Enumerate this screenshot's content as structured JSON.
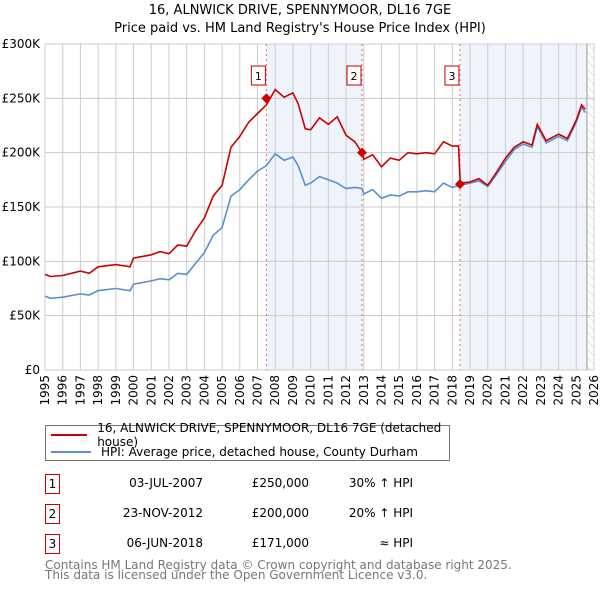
{
  "title": [
    "16, ALNWICK DRIVE, SPENNYMOOR, DL16 7GE",
    "Price paid vs. HM Land Registry's House Price Index (HPI)"
  ],
  "chart_data": {
    "type": "line",
    "xlim": [
      1995,
      2026
    ],
    "ylim": [
      0,
      300000
    ],
    "y_ticks": [
      {
        "v": 0,
        "label": "£0"
      },
      {
        "v": 50000,
        "label": "£50K"
      },
      {
        "v": 100000,
        "label": "£100K"
      },
      {
        "v": 150000,
        "label": "£150K"
      },
      {
        "v": 200000,
        "label": "£200K"
      },
      {
        "v": 250000,
        "label": "£250K"
      },
      {
        "v": 300000,
        "label": "£300K"
      }
    ],
    "x_ticks": [
      "1995",
      "1996",
      "1997",
      "1998",
      "1999",
      "2000",
      "2001",
      "2002",
      "2003",
      "2004",
      "2005",
      "2006",
      "2007",
      "2008",
      "2009",
      "2010",
      "2011",
      "2012",
      "2013",
      "2014",
      "2015",
      "2016",
      "2017",
      "2018",
      "2019",
      "2020",
      "2021",
      "2022",
      "2023",
      "2024",
      "2025",
      "2026"
    ],
    "series": [
      {
        "name": "16, ALNWICK DRIVE, SPENNYMOOR, DL16 7GE (detached house)",
        "color": "#cc0000",
        "x": [
          1995,
          1995.3,
          1996,
          1997,
          1997.5,
          1998,
          1999,
          1999.8,
          2000,
          2001,
          2001.5,
          2002,
          2002.5,
          2003,
          2003.5,
          2004,
          2004.5,
          2005,
          2005.5,
          2006,
          2006.5,
          2007,
          2007.5,
          2008,
          2008.5,
          2009,
          2009.3,
          2009.7,
          2010,
          2010.5,
          2011,
          2011.5,
          2012,
          2012.5,
          2012.9,
          2013,
          2013.5,
          2014,
          2014.5,
          2015,
          2015.5,
          2016,
          2016.5,
          2017,
          2017.5,
          2018,
          2018.35,
          2018.45,
          2019,
          2019.5,
          2020,
          2020.5,
          2021,
          2021.5,
          2022,
          2022.5,
          2022.8,
          2023.3,
          2024,
          2024.5,
          2025,
          2025.3,
          2025.5
        ],
        "y": [
          88,
          86,
          87,
          91,
          89,
          95,
          97,
          95,
          103,
          106,
          109,
          107,
          115,
          114,
          128,
          140,
          160,
          170,
          205,
          215,
          228,
          236,
          244,
          258,
          251,
          255,
          245,
          222,
          221,
          232,
          226,
          233,
          216,
          210,
          200,
          194,
          198,
          187,
          195,
          193,
          200,
          199,
          200,
          199,
          210,
          206,
          206,
          172,
          173,
          176,
          170,
          182,
          195,
          205,
          210,
          207,
          226,
          211,
          217,
          213,
          230,
          244,
          240
        ]
      },
      {
        "name": "HPI: Average price, detached house, County Durham",
        "color": "#5b8fd0",
        "x": [
          1995,
          1995.3,
          1996,
          1997,
          1997.5,
          1998,
          1999,
          1999.8,
          2000,
          2001,
          2001.5,
          2002,
          2002.5,
          2003,
          2003.5,
          2004,
          2004.5,
          2005,
          2005.5,
          2006,
          2006.5,
          2007,
          2007.5,
          2008,
          2008.5,
          2009,
          2009.3,
          2009.7,
          2010,
          2010.5,
          2011,
          2011.5,
          2012,
          2012.5,
          2012.9,
          2013,
          2013.5,
          2014,
          2014.5,
          2015,
          2015.5,
          2016,
          2016.5,
          2017,
          2017.5,
          2018,
          2018.4,
          2019,
          2019.5,
          2020,
          2020.5,
          2021,
          2021.5,
          2022,
          2022.5,
          2022.8,
          2023.3,
          2024,
          2024.5,
          2025,
          2025.3,
          2025.5
        ],
        "y": [
          68,
          66,
          67,
          70,
          69,
          73,
          75,
          73,
          79,
          82,
          84,
          83,
          89,
          88,
          98,
          108,
          124,
          131,
          160,
          166,
          175,
          183,
          188,
          199,
          193,
          196,
          188,
          170,
          172,
          178,
          175,
          172,
          167,
          168,
          167,
          162,
          166,
          158,
          161,
          160,
          164,
          164,
          165,
          164,
          172,
          168,
          170,
          172,
          174,
          169,
          180,
          192,
          203,
          208,
          205,
          224,
          209,
          215,
          211,
          228,
          242,
          237
        ]
      }
    ],
    "y_unit": "thousands GBP",
    "sales": [
      {
        "n": "1",
        "x": 2007.5,
        "date": "03-JUL-2007",
        "price": "£250,000",
        "value": 250,
        "hpi": "30% ↑ HPI"
      },
      {
        "n": "2",
        "x": 2012.9,
        "date": "23-NOV-2012",
        "price": "£200,000",
        "value": 200,
        "hpi": "20% ↑ HPI"
      },
      {
        "n": "3",
        "x": 2018.43,
        "date": "06-JUN-2018",
        "price": "£171,000",
        "value": 171,
        "hpi": "≈ HPI"
      }
    ],
    "data_end": 2025.6
  },
  "footer": [
    "Contains HM Land Registry data © Crown copyright and database right 2025.",
    "This data is licensed under the Open Government Licence v3.0."
  ]
}
